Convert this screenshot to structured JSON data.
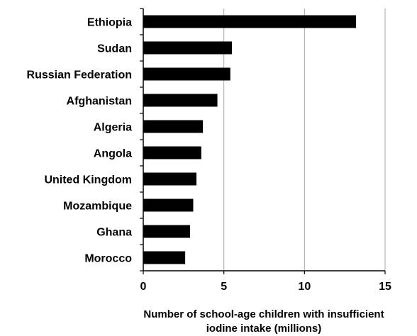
{
  "chart_data": {
    "type": "bar",
    "orientation": "horizontal",
    "title": "",
    "xlabel": [
      "Number of school-age children with insufficient",
      "iodine intake (millions)"
    ],
    "ylabel": "",
    "categories": [
      "Ethiopia",
      "Sudan",
      "Russian Federation",
      "Afghanistan",
      "Algeria",
      "Angola",
      "United Kingdom",
      "Mozambique",
      "Ghana",
      "Morocco"
    ],
    "values": [
      13.2,
      5.5,
      5.4,
      4.6,
      3.7,
      3.6,
      3.3,
      3.1,
      2.9,
      2.6
    ],
    "xlim": [
      0,
      15
    ],
    "xticks": [
      0,
      5,
      10,
      15
    ],
    "grid": "vertical",
    "bar_color": "#000000",
    "grid_color": "#a6a6a6"
  }
}
